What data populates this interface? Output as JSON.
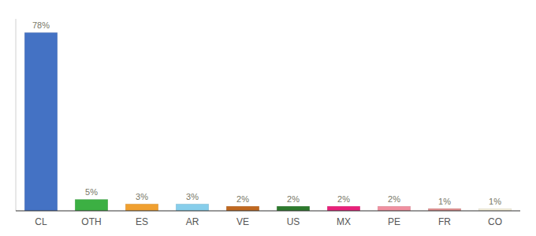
{
  "chart_data": {
    "type": "bar",
    "categories": [
      "CL",
      "OTH",
      "ES",
      "AR",
      "VE",
      "US",
      "MX",
      "PE",
      "FR",
      "CO"
    ],
    "values": [
      78,
      5,
      3,
      3,
      2,
      2,
      2,
      2,
      1,
      1
    ],
    "value_labels": [
      "78%",
      "5%",
      "3%",
      "3%",
      "2%",
      "2%",
      "2%",
      "2%",
      "1%",
      "1%"
    ],
    "colors": [
      "#4472c4",
      "#3cb043",
      "#f0a030",
      "#87ceeb",
      "#c06820",
      "#2d7a2d",
      "#e8207a",
      "#f090a0",
      "#e09090",
      "#f5f0dc"
    ],
    "ylim": [
      0,
      84
    ],
    "data_labels": true,
    "tick_labels": "x",
    "grid": false
  }
}
